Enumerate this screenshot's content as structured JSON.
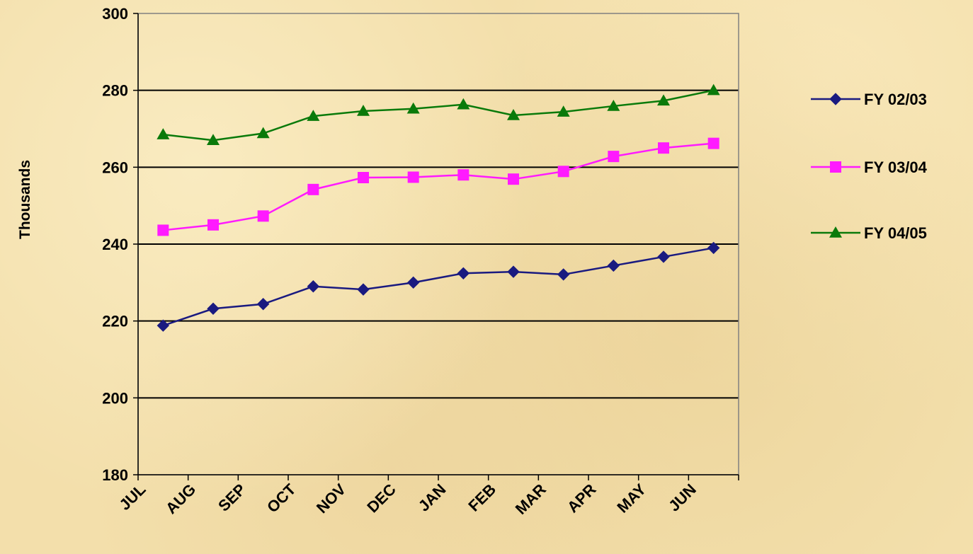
{
  "chart_data": {
    "type": "line",
    "title": "",
    "xlabel": "",
    "ylabel": "Thousands",
    "ylim": [
      180,
      300
    ],
    "y_ticks": [
      180,
      200,
      220,
      240,
      260,
      280,
      300
    ],
    "y_tick_labels": [
      "180",
      "200",
      "220",
      "240",
      "260",
      "280",
      "300"
    ],
    "grid": "horizontal",
    "legend_position": "right",
    "categories": [
      "JUL",
      "AUG",
      "SEP",
      "OCT",
      "NOV",
      "DEC",
      "JAN",
      "FEB",
      "MAR",
      "APR",
      "MAY",
      "JUN"
    ],
    "series": [
      {
        "name": "FY 02/03",
        "color": "#1a1a80",
        "marker": "diamond",
        "values": [
          218.8,
          223.2,
          224.4,
          229.0,
          228.2,
          230.0,
          232.4,
          232.8,
          232.1,
          234.4,
          236.7,
          239.0
        ]
      },
      {
        "name": "FY 03/04",
        "color": "#ff1aff",
        "marker": "square",
        "values": [
          243.6,
          245.0,
          247.3,
          254.2,
          257.3,
          257.4,
          258.0,
          256.9,
          258.9,
          262.8,
          265.0,
          266.2
        ]
      },
      {
        "name": "FY 04/05",
        "color": "#0a7a0a",
        "marker": "triangle",
        "values": [
          268.5,
          267.0,
          268.8,
          273.3,
          274.6,
          275.2,
          276.3,
          273.5,
          274.4,
          275.9,
          277.3,
          280.0
        ]
      }
    ]
  }
}
